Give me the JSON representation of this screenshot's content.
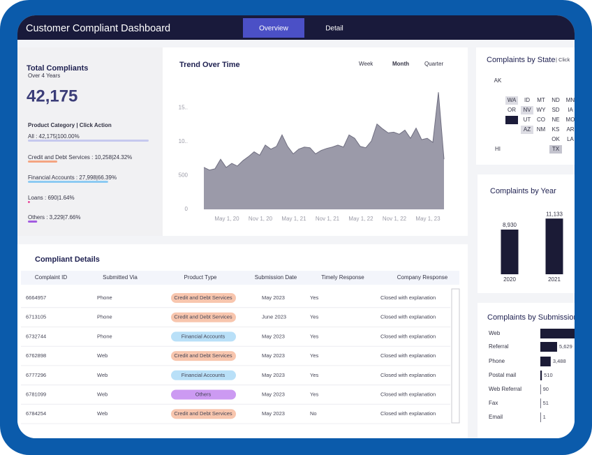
{
  "header": {
    "title": "Customer Compliant Dashboard",
    "tabs": [
      {
        "label": "Overview",
        "active": true
      },
      {
        "label": "Detail"
      }
    ]
  },
  "summary": {
    "title": "Total Compliants",
    "subtitle": "Over 4 Years",
    "total": "42,175",
    "category_heading": "Product Category | Click Action",
    "categories": [
      {
        "label": "All : 42,175|100.00%",
        "percent": 100,
        "color": "#c6c9ee"
      },
      {
        "label": "Credit and Debt Services : 10,258|24.32%",
        "percent": 24.32,
        "color": "#f4a582"
      },
      {
        "label": "Financial Accounts : 27,998|66.39%",
        "percent": 66.39,
        "color": "#8ccaf2"
      },
      {
        "label": "Loans : 690|1.64%",
        "percent": 1.64,
        "color": "#e8479a"
      },
      {
        "label": "Others : 3,229|7.66%",
        "percent": 7.66,
        "color": "#a35ce0"
      }
    ]
  },
  "state_map": {
    "title": "Complaints by State",
    "hint": "| Click",
    "rows": [
      [
        {
          "label": "AK"
        }
      ],
      [],
      [
        null,
        {
          "label": "WA",
          "fill": "#dcdce3"
        },
        {
          "label": "ID"
        },
        {
          "label": "MT"
        },
        {
          "label": "ND"
        },
        {
          "label": "MN"
        }
      ],
      [
        null,
        {
          "label": "OR"
        },
        {
          "label": "NV",
          "fill": "#dcdce3"
        },
        {
          "label": "WY"
        },
        {
          "label": "SD"
        },
        {
          "label": "IA"
        }
      ],
      [
        null,
        {
          "fill": "#1c1c3a"
        },
        {
          "label": "UT"
        },
        {
          "label": "CO"
        },
        {
          "label": "NE"
        },
        {
          "label": "MO"
        }
      ],
      [
        null,
        null,
        {
          "label": "AZ",
          "fill": "#dcdce3"
        },
        {
          "label": "NM"
        },
        {
          "label": "KS"
        },
        {
          "label": "AR"
        }
      ],
      [
        null,
        null,
        null,
        null,
        {
          "label": "OK"
        },
        {
          "label": "LA"
        }
      ],
      [
        {
          "label": "HI"
        },
        null,
        null,
        null,
        {
          "label": "TX",
          "fill": "#c4c4ce"
        }
      ]
    ]
  },
  "chart_data": [
    {
      "type": "area",
      "title": "Trend Over Time",
      "periods": [
        {
          "label": "Week"
        },
        {
          "label": "Month",
          "active": true
        },
        {
          "label": "Quarter"
        }
      ],
      "x": [
        null,
        null,
        null,
        null,
        "May 1, 20",
        null,
        null,
        null,
        null,
        null,
        "Nov 1, 20",
        null,
        null,
        null,
        null,
        null,
        "May 1, 21",
        null,
        null,
        null,
        null,
        null,
        "Nov 1, 21",
        null,
        null,
        null,
        null,
        null,
        "May 1, 22",
        null,
        null,
        null,
        null,
        null,
        "Nov 1, 22",
        null,
        null,
        null,
        null,
        null,
        "May 1, 23",
        null,
        null,
        null
      ],
      "values": [
        620,
        580,
        600,
        740,
        620,
        680,
        640,
        720,
        780,
        850,
        800,
        950,
        890,
        930,
        1100,
        930,
        820,
        890,
        920,
        910,
        820,
        870,
        900,
        920,
        950,
        920,
        1100,
        1050,
        930,
        910,
        1010,
        1260,
        1190,
        1130,
        1140,
        1110,
        1170,
        1050,
        1200,
        1030,
        1050,
        990,
        1730,
        740
      ],
      "color": "#9b9aa9",
      "line_color": "#6f6e80",
      "ylim": [
        0,
        1800
      ],
      "yticks": [
        {
          "value": 1500,
          "label": "15.."
        },
        {
          "value": 1000,
          "label": "10.."
        },
        500,
        0
      ]
    },
    {
      "type": "bar",
      "title": "Complaints by Year",
      "categories": [
        "2020",
        "2021"
      ],
      "values": [
        8930,
        11133
      ],
      "value_labels": [
        "8,930",
        "11,133"
      ],
      "color": "#1b1b36"
    },
    {
      "type": "hbar",
      "title": "Complaints by Submission",
      "categories": [
        "Web",
        "Referral",
        "Phone",
        "Postal mail",
        "Web Referral",
        "Fax",
        "Email"
      ],
      "values": [
        32406,
        5629,
        3488,
        510,
        90,
        51,
        1
      ],
      "value_labels": [
        null,
        "5,629",
        "3,488",
        "510",
        "90",
        "51",
        "1"
      ],
      "color": "#1b1b36"
    }
  ],
  "table": {
    "title": "Compliant Details",
    "columns": [
      "Complaint ID",
      "Submitted Via",
      "Product Type",
      "Submission Date",
      "Timely Response",
      "Company Response"
    ],
    "product_colors": {
      "Credit and Debt Services": "#f8c6ae",
      "Financial Accounts": "#b9e0f8",
      "Others": "#cc9af2"
    },
    "rows": [
      [
        "6664957",
        "Phone",
        "Credit and Debt Services",
        "May 2023",
        "Yes",
        "Closed with explanation"
      ],
      [
        "6713105",
        "Phone",
        "Credit and Debt Services",
        "June 2023",
        "Yes",
        "Closed with explanation"
      ],
      [
        "6732744",
        "Phone",
        "Financial Accounts",
        "May 2023",
        "Yes",
        "Closed with explanation"
      ],
      [
        "6762898",
        "Web",
        "Credit and Debt Services",
        "May 2023",
        "Yes",
        "Closed with explanation"
      ],
      [
        "6777296",
        "Web",
        "Financial Accounts",
        "May 2023",
        "Yes",
        "Closed with explanation"
      ],
      [
        "6781099",
        "Web",
        "Others",
        "May 2023",
        "Yes",
        "Closed with explanation"
      ],
      [
        "6784254",
        "Web",
        "Credit and Debt Services",
        "May 2023",
        "No",
        "Closed with explanation"
      ]
    ]
  }
}
